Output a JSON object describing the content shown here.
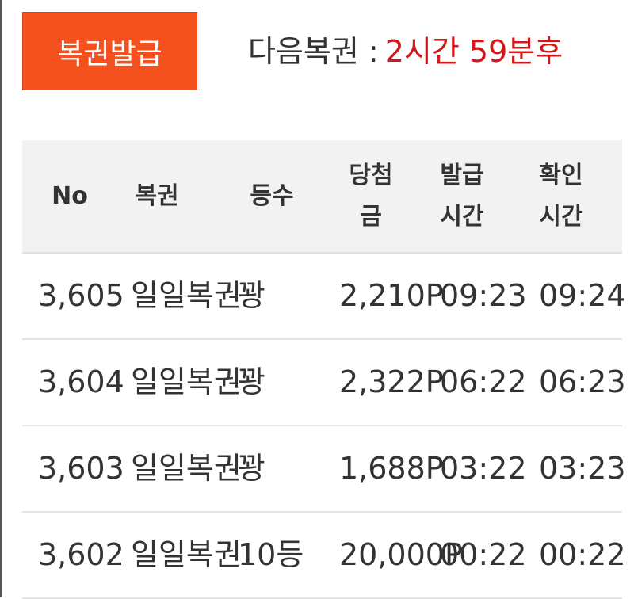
{
  "header": {
    "button": "복권발급",
    "next_label": "다음복권 :",
    "next_time": "2시간 59분후"
  },
  "table": {
    "columns": [
      "No",
      "복권",
      "등수",
      "당첨금",
      "발급시간",
      "확인시간"
    ],
    "rows": [
      [
        "3,605",
        "일일복권",
        "꽝",
        "2,210P",
        "09:23",
        "09:24"
      ],
      [
        "3,604",
        "일일복권",
        "꽝",
        "2,322P",
        "06:22",
        "06:23"
      ],
      [
        "3,603",
        "일일복권",
        "꽝",
        "1,688P",
        "03:22",
        "03:23"
      ],
      [
        "3,602",
        "일일복권",
        "10등",
        "20,000P",
        "00:22",
        "00:22"
      ]
    ]
  }
}
